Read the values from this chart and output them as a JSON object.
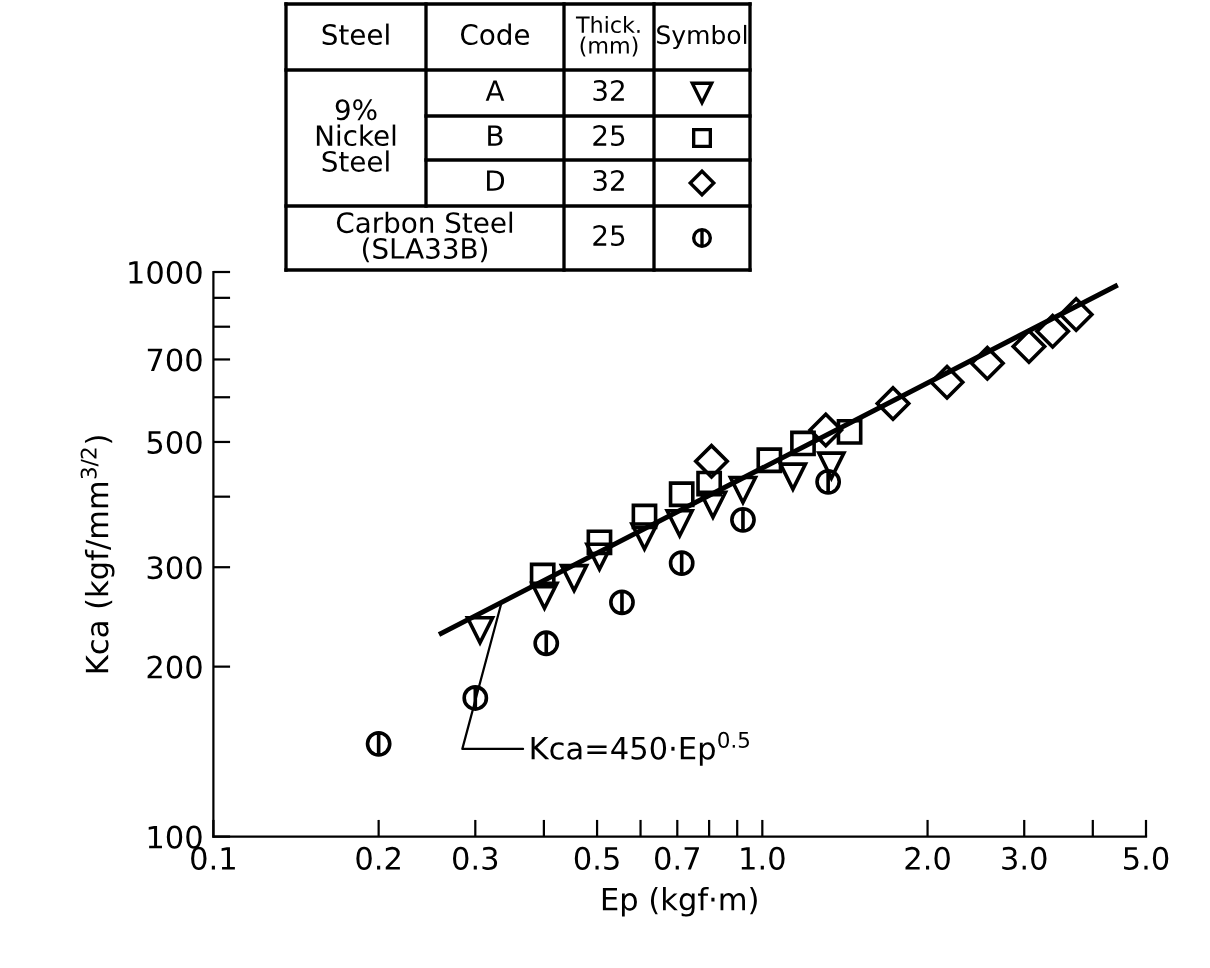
{
  "chart_data": {
    "type": "scatter",
    "xlabel": "Ep (kgf·m)",
    "ylabel": "Kca (kgf/mm$^{3/2}$)",
    "log": "xy",
    "grid": false,
    "legend": false,
    "xlim": [
      0.1,
      5.0
    ],
    "ylim": [
      100,
      1000
    ],
    "xticks": [
      0.1,
      0.2,
      0.3,
      {
        "value": 0.4,
        "label": null
      },
      0.5,
      {
        "value": 0.6,
        "label": null
      },
      0.7,
      {
        "value": 0.8,
        "label": null
      },
      {
        "value": 0.9,
        "label": null
      },
      {
        "value": 1.0,
        "label": "1.0"
      },
      {
        "value": 2.0,
        "label": "2.0"
      },
      {
        "value": 3.0,
        "label": "3.0"
      },
      {
        "value": 4.0,
        "label": null
      },
      {
        "value": 5.0,
        "label": "5.0"
      }
    ],
    "yticks": [
      100,
      200,
      300,
      {
        "value": 400,
        "label": null
      },
      500,
      {
        "value": 600,
        "label": null
      },
      700,
      {
        "value": 800,
        "label": null
      },
      {
        "value": 900,
        "label": null
      },
      1000
    ],
    "series": [
      {
        "color": "#000000",
        "marker": "triangle",
        "x": [
          0.306,
          0.401,
          0.454,
          0.505,
          0.61,
          0.707,
          0.813,
          0.922,
          1.137,
          1.336
        ],
        "values": [
          232,
          267,
          287,
          313,
          340,
          359,
          387,
          411,
          434,
          454
        ]
      },
      {
        "color": "#000000",
        "marker": "square",
        "x": [
          0.398,
          0.505,
          0.61,
          0.713,
          0.8,
          1.03,
          1.186,
          1.442
        ],
        "values": [
          290,
          332,
          369,
          404,
          422,
          464,
          497,
          521
        ]
      },
      {
        "color": "#000000",
        "marker": "diamond",
        "x": [
          0.808,
          1.305,
          1.73,
          2.17,
          2.57,
          3.06,
          3.38,
          3.73
        ],
        "values": [
          462,
          525,
          585,
          638,
          689,
          738,
          785,
          841
        ]
      },
      {
        "color": "#000000",
        "x": [
          0.2,
          0.3,
          0.404,
          0.555,
          0.713,
          0.922,
          1.318
        ],
        "values": [
          146,
          176,
          220,
          260,
          305,
          364,
          425
        ]
      },
      {
        "type": "line",
        "color": "#000000",
        "marker": "none",
        "line_style": "solid",
        "x": [
          0.26,
          4.4
        ],
        "values": [
          229,
          944
        ]
      }
    ],
    "annotations": [
      "Steel",
      "Code",
      "Thick.\n(mm)",
      "Symbol",
      "9%\nNickel\nSteel",
      "A",
      "B",
      "D",
      "Carbon Steel\n(SLA33B)",
      "32",
      "25",
      "32",
      "25",
      {
        "text": "Kca=450·Ep$^{0.5}$",
        "x": 0.335,
        "y": 260
      }
    ]
  }
}
